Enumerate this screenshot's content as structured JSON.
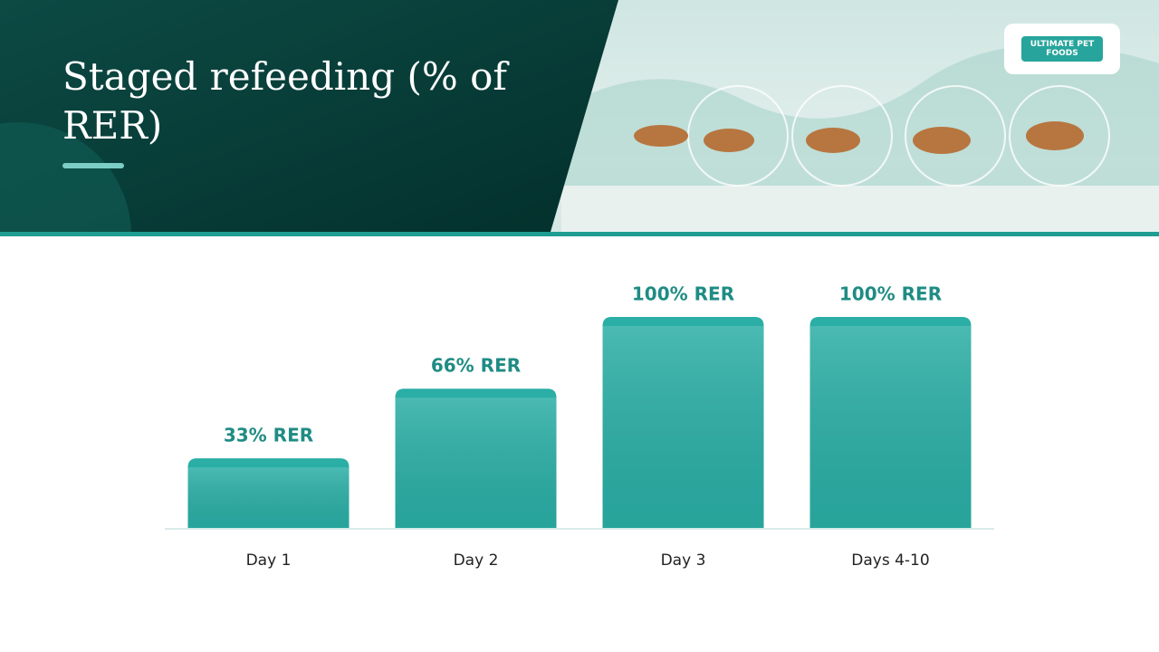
{
  "title": "Staged refeeding (% of RER)",
  "logo": "ULTIMATE PET FOODS",
  "chart_data": {
    "type": "bar",
    "categories": [
      "Day 1",
      "Day 2",
      "Day 3",
      "Days 4-10"
    ],
    "values": [
      33,
      66,
      100,
      100
    ],
    "value_labels": [
      "33% RER",
      "66% RER",
      "100% RER",
      "100% RER"
    ],
    "color": "#2aaea5",
    "ylim": [
      0,
      100
    ]
  }
}
